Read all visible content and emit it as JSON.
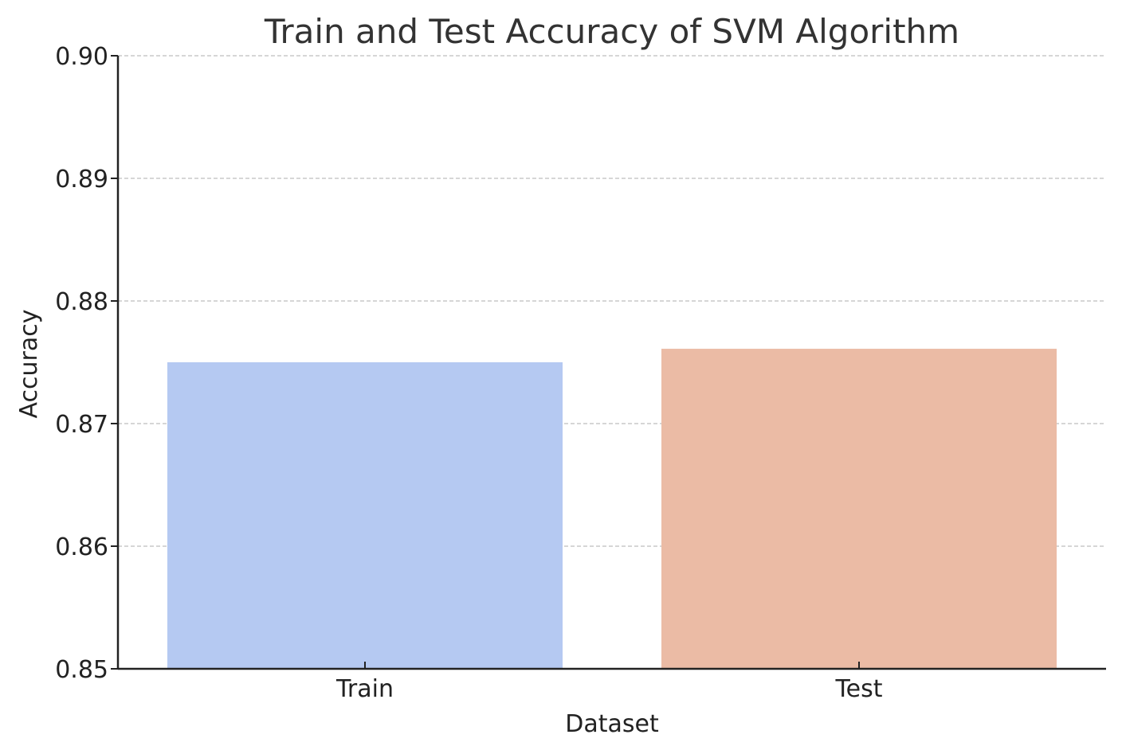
{
  "chart_data": {
    "type": "bar",
    "title": "Train and Test Accuracy of SVM Algorithm",
    "xlabel": "Dataset",
    "ylabel": "Accuracy",
    "categories": [
      "Train",
      "Test"
    ],
    "values": [
      0.875,
      0.8761
    ],
    "colors": [
      "#b5c9f2",
      "#ebbba5"
    ],
    "ylim": [
      0.85,
      0.9
    ],
    "yticks": [
      0.85,
      0.86,
      0.87,
      0.88,
      0.89,
      0.9
    ],
    "ytick_labels": [
      "0.85",
      "0.86",
      "0.87",
      "0.88",
      "0.89",
      "0.90"
    ],
    "grid": "y-dashed",
    "legend": "none"
  }
}
